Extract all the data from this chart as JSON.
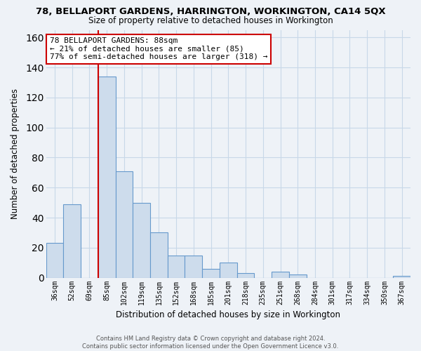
{
  "title": "78, BELLAPORT GARDENS, HARRINGTON, WORKINGTON, CA14 5QX",
  "subtitle": "Size of property relative to detached houses in Workington",
  "xlabel": "Distribution of detached houses by size in Workington",
  "ylabel": "Number of detached properties",
  "bar_labels": [
    "36sqm",
    "52sqm",
    "69sqm",
    "85sqm",
    "102sqm",
    "119sqm",
    "135sqm",
    "152sqm",
    "168sqm",
    "185sqm",
    "201sqm",
    "218sqm",
    "235sqm",
    "251sqm",
    "268sqm",
    "284sqm",
    "301sqm",
    "317sqm",
    "334sqm",
    "350sqm",
    "367sqm"
  ],
  "bar_values": [
    23,
    49,
    0,
    134,
    71,
    50,
    30,
    15,
    15,
    6,
    10,
    3,
    0,
    4,
    2,
    0,
    0,
    0,
    0,
    0,
    1
  ],
  "bar_color": "#cddcec",
  "bar_edge_color": "#6699cc",
  "vline_color": "#cc0000",
  "vline_index": 3,
  "annotation_lines": [
    "78 BELLAPORT GARDENS: 88sqm",
    "← 21% of detached houses are smaller (85)",
    "77% of semi-detached houses are larger (318) →"
  ],
  "annotation_box_color": "#ffffff",
  "annotation_box_edge": "#cc0000",
  "ylim": [
    0,
    165
  ],
  "yticks": [
    0,
    20,
    40,
    60,
    80,
    100,
    120,
    140,
    160
  ],
  "grid_color": "#c8d8e8",
  "footer_line1": "Contains HM Land Registry data © Crown copyright and database right 2024.",
  "footer_line2": "Contains public sector information licensed under the Open Government Licence v3.0.",
  "bg_color": "#eef2f7"
}
